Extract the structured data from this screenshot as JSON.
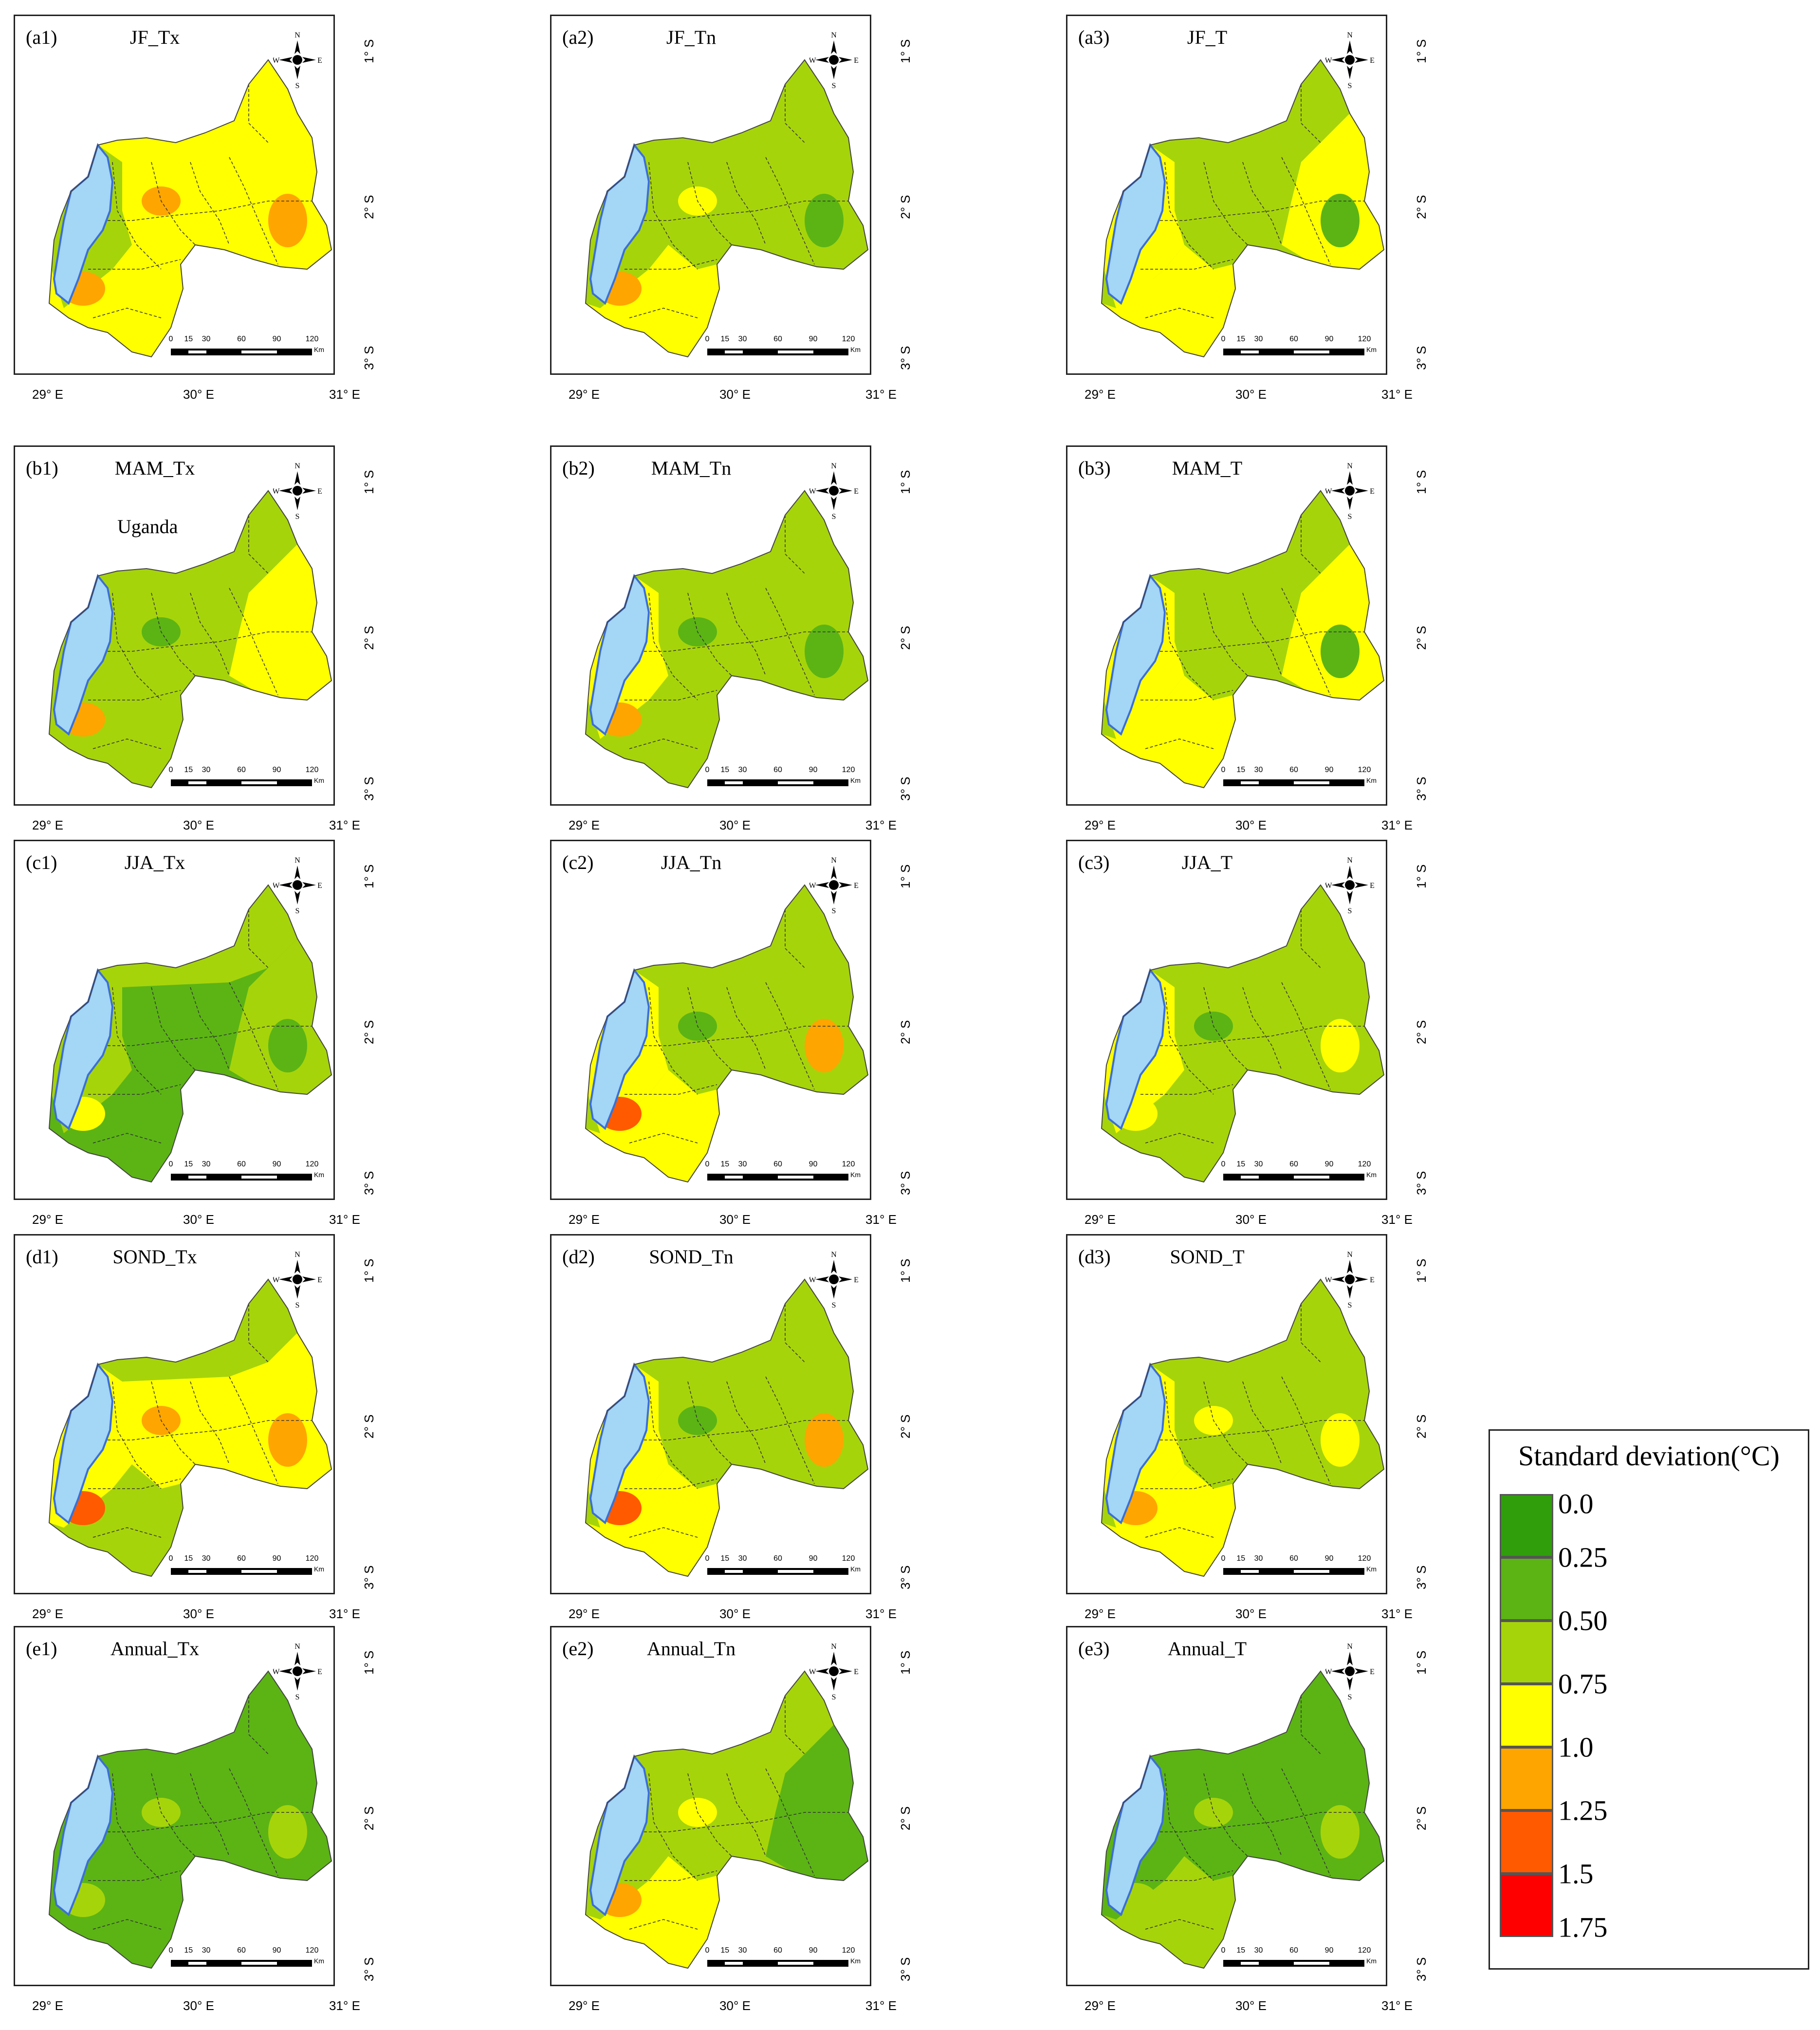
{
  "colors": {
    "bin_0": "#2f9e0a",
    "bin_1": "#5bb414",
    "bin_2": "#a6d40a",
    "bin_3": "#ffff00",
    "bin_4": "#ffa500",
    "bin_5": "#ff5a00",
    "bin_6": "#ff0000",
    "lake": "#a4d6f5",
    "lake_border": "#3b6fd6",
    "boundary": "#333333"
  },
  "axis": {
    "lon_labels": [
      "29° E",
      "30° E",
      "31° E"
    ],
    "lat_labels": [
      "1° S",
      "2° S",
      "3° S"
    ]
  },
  "compass": {
    "n": "N",
    "s": "S",
    "e": "E",
    "w": "W"
  },
  "scalebar": {
    "ticks": [
      "0",
      "15",
      "30",
      "60",
      "90",
      "120"
    ],
    "unit": "Km"
  },
  "panels": [
    {
      "id": "a1",
      "label": "(a1)",
      "title": "JF_Tx",
      "fills": {
        "west": 2,
        "north": 3,
        "centre": 3,
        "east": 3,
        "south": 3
      },
      "hotspots": [
        4,
        4,
        4
      ]
    },
    {
      "id": "a2",
      "label": "(a2)",
      "title": "JF_Tn",
      "fills": {
        "west": 2,
        "north": 2,
        "centre": 2,
        "east": 2,
        "south": 3
      },
      "hotspots": [
        4,
        1,
        3
      ]
    },
    {
      "id": "a3",
      "label": "(a3)",
      "title": "JF_T",
      "fills": {
        "west": 3,
        "north": 2,
        "centre": 2,
        "east": 3,
        "south": 3
      },
      "hotspots": [
        3,
        1,
        2
      ]
    },
    {
      "id": "b1",
      "label": "(b1)",
      "title": "MAM_Tx",
      "extra_text": "Uganda",
      "fills": {
        "west": 2,
        "north": 2,
        "centre": 2,
        "east": 3,
        "south": 2
      },
      "hotspots": [
        4,
        3,
        1
      ]
    },
    {
      "id": "b2",
      "label": "(b2)",
      "title": "MAM_Tn",
      "fills": {
        "west": 3,
        "north": 2,
        "centre": 2,
        "east": 2,
        "south": 2
      },
      "hotspots": [
        4,
        1,
        1
      ]
    },
    {
      "id": "b3",
      "label": "(b3)",
      "title": "MAM_T",
      "fills": {
        "west": 3,
        "north": 2,
        "centre": 2,
        "east": 3,
        "south": 3
      },
      "hotspots": [
        3,
        1,
        2
      ]
    },
    {
      "id": "c1",
      "label": "(c1)",
      "title": "JJA_Tx",
      "fills": {
        "west": 2,
        "north": 2,
        "centre": 1,
        "east": 2,
        "south": 1
      },
      "hotspots": [
        3,
        1,
        1
      ]
    },
    {
      "id": "c2",
      "label": "(c2)",
      "title": "JJA_Tn",
      "fills": {
        "west": 3,
        "north": 2,
        "centre": 2,
        "east": 2,
        "south": 3
      },
      "hotspots": [
        5,
        4,
        1
      ]
    },
    {
      "id": "c3",
      "label": "(c3)",
      "title": "JJA_T",
      "fills": {
        "west": 3,
        "north": 2,
        "centre": 2,
        "east": 2,
        "south": 2
      },
      "hotspots": [
        3,
        3,
        1
      ]
    },
    {
      "id": "d1",
      "label": "(d1)",
      "title": "SOND_Tx",
      "fills": {
        "west": 3,
        "north": 2,
        "centre": 3,
        "east": 3,
        "south": 2
      },
      "hotspots": [
        5,
        4,
        4
      ]
    },
    {
      "id": "d2",
      "label": "(d2)",
      "title": "SOND_Tn",
      "fills": {
        "west": 3,
        "north": 2,
        "centre": 2,
        "east": 2,
        "south": 3
      },
      "hotspots": [
        5,
        4,
        1
      ]
    },
    {
      "id": "d3",
      "label": "(d3)",
      "title": "SOND_T",
      "fills": {
        "west": 3,
        "north": 2,
        "centre": 2,
        "east": 2,
        "south": 3
      },
      "hotspots": [
        4,
        3,
        3
      ]
    },
    {
      "id": "e1",
      "label": "(e1)",
      "title": "Annual_Tx",
      "fills": {
        "west": 1,
        "north": 1,
        "centre": 1,
        "east": 1,
        "south": 1
      },
      "hotspots": [
        2,
        2,
        2
      ]
    },
    {
      "id": "e2",
      "label": "(e2)",
      "title": "Annual_Tn",
      "fills": {
        "west": 2,
        "north": 2,
        "centre": 2,
        "east": 1,
        "south": 3
      },
      "hotspots": [
        4,
        1,
        3
      ]
    },
    {
      "id": "e3",
      "label": "(e3)",
      "title": "Annual_T",
      "fills": {
        "west": 1,
        "north": 1,
        "centre": 1,
        "east": 1,
        "south": 2
      },
      "hotspots": [
        2,
        2,
        2
      ]
    }
  ],
  "legend": {
    "title": "Standard deviation(°C)",
    "values": [
      "0.0",
      "0.25",
      "0.50",
      "0.75",
      "1.0",
      "1.25",
      "1.5",
      "1.75"
    ]
  }
}
